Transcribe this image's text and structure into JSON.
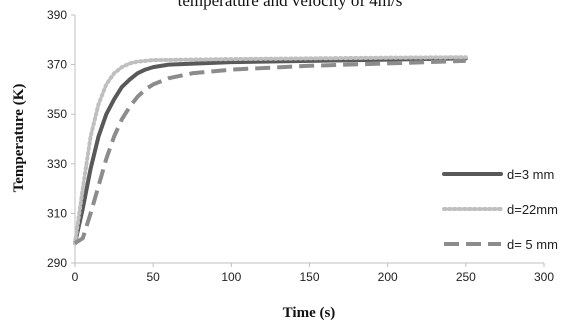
{
  "chart_data": {
    "type": "line",
    "title": "temperature and velocity of 4m/s",
    "xlabel": "Time (s)",
    "ylabel": "Temperature (K)",
    "xlim": [
      0,
      300
    ],
    "ylim": [
      290,
      390
    ],
    "x_ticks": [
      "0",
      "50",
      "100",
      "150",
      "200",
      "250",
      "300"
    ],
    "y_ticks": [
      "290",
      "310",
      "330",
      "350",
      "370",
      "390"
    ],
    "grid": false,
    "legend_position": "right",
    "series": [
      {
        "name": "d=3 mm",
        "color": "#595959",
        "style": "solid",
        "points": [
          [
            0,
            298
          ],
          [
            5,
            312
          ],
          [
            10,
            328
          ],
          [
            15,
            341
          ],
          [
            20,
            350
          ],
          [
            25,
            356
          ],
          [
            30,
            361
          ],
          [
            35,
            364
          ],
          [
            40,
            366.5
          ],
          [
            45,
            368
          ],
          [
            50,
            369
          ],
          [
            60,
            370
          ],
          [
            80,
            370.5
          ],
          [
            100,
            371
          ],
          [
            150,
            371.5
          ],
          [
            200,
            372
          ],
          [
            250,
            372.5
          ]
        ]
      },
      {
        "name": "d=22mm",
        "color": "#bfbfbf",
        "style": "dotted",
        "points": [
          [
            0,
            298
          ],
          [
            5,
            320
          ],
          [
            10,
            341
          ],
          [
            15,
            354
          ],
          [
            20,
            362
          ],
          [
            25,
            366.5
          ],
          [
            30,
            369
          ],
          [
            35,
            370.5
          ],
          [
            40,
            371.2
          ],
          [
            50,
            371.8
          ],
          [
            75,
            372
          ],
          [
            100,
            372.2
          ],
          [
            150,
            372.5
          ],
          [
            200,
            372.8
          ],
          [
            250,
            373
          ]
        ]
      },
      {
        "name": "d= 5 mm",
        "color": "#8c8c8c",
        "style": "dashed",
        "points": [
          [
            0,
            298
          ],
          [
            5,
            300
          ],
          [
            10,
            310
          ],
          [
            15,
            321
          ],
          [
            20,
            332
          ],
          [
            25,
            341
          ],
          [
            30,
            348
          ],
          [
            35,
            353
          ],
          [
            40,
            357
          ],
          [
            45,
            360
          ],
          [
            50,
            362
          ],
          [
            60,
            364.5
          ],
          [
            75,
            366.5
          ],
          [
            100,
            368
          ],
          [
            150,
            369.5
          ],
          [
            200,
            370.5
          ],
          [
            250,
            371.5
          ]
        ]
      }
    ]
  }
}
